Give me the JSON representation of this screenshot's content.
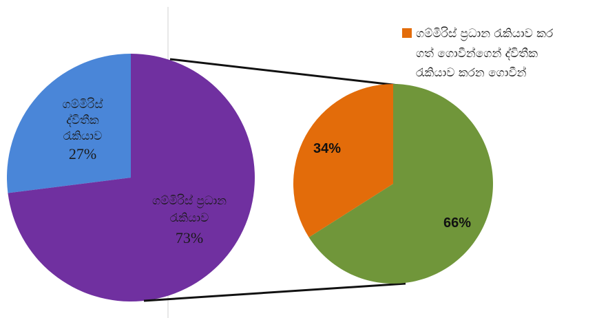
{
  "chart_data": {
    "type": "pie",
    "main_pie": {
      "slices": [
        {
          "name_lines": [
            "ගම්මිරිස්",
            "ද්විතීක",
            "රැකියාව"
          ],
          "value": 27,
          "label": "27%",
          "color": "#4a86d8"
        },
        {
          "name_lines": [
            "ගම්මිරිස් ප්‍රධාන",
            "රැකියාව"
          ],
          "value": 73,
          "label": "73%",
          "color": "#7030a0"
        }
      ]
    },
    "sub_pie": {
      "slices": [
        {
          "value": 66,
          "label": "66%",
          "color": "#70963a"
        },
        {
          "value": 34,
          "label": "34%",
          "color": "#e36c0a"
        }
      ]
    },
    "legend": {
      "color": "#e36c0a",
      "lines": [
        "ගම්මිරිස් ප්‍රධාන රැකියාව කර",
        "ගත් ගොවීන්ගෙන් ද්විතීක",
        "රැකියාව කරන ගොවීන්"
      ]
    }
  }
}
